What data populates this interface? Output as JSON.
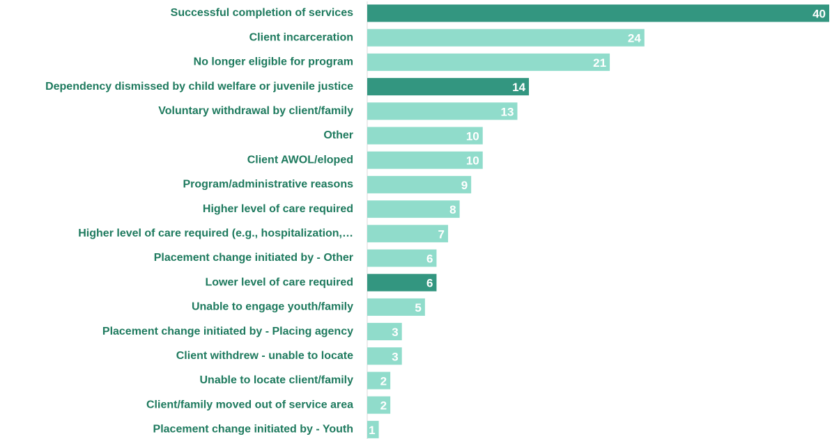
{
  "chart_data": {
    "type": "barh",
    "categories": [
      "Successful completion of services",
      "Client incarceration",
      "No longer eligible for program",
      "Dependency dismissed by child welfare or juvenile justice",
      "Voluntary withdrawal by client/family",
      "Other",
      "Client AWOL/eloped",
      "Program/administrative reasons",
      "Higher level of care required",
      "Higher level of care required (e.g., hospitalization,…",
      "Placement change initiated by - Other",
      "Lower level of care required",
      "Unable to engage youth/family",
      "Placement change initiated by - Placing agency",
      "Client withdrew - unable to locate",
      "Unable to locate client/family",
      "Client/family moved out of service area",
      "Placement change initiated by - Youth"
    ],
    "values": [
      40,
      24,
      21,
      14,
      13,
      10,
      10,
      9,
      8,
      7,
      6,
      6,
      5,
      3,
      3,
      2,
      2,
      1
    ],
    "colors": [
      "#339680",
      "#90dccb",
      "#90dccb",
      "#339680",
      "#90dccb",
      "#90dccb",
      "#90dccb",
      "#90dccb",
      "#90dccb",
      "#90dccb",
      "#90dccb",
      "#339680",
      "#90dccb",
      "#90dccb",
      "#90dccb",
      "#90dccb",
      "#90dccb",
      "#90dccb"
    ],
    "xlim": [
      0,
      40
    ]
  }
}
